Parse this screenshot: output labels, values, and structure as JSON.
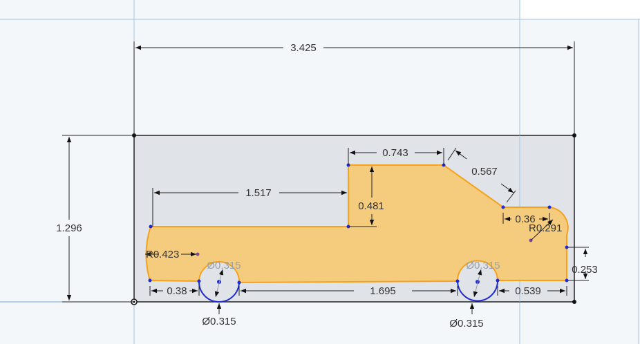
{
  "colors": {
    "body_fill": "#f5ca78",
    "body_stroke": "#f5a21c",
    "wheel_stroke": "#1f2ad6",
    "stock_fill": "#dcdfe4",
    "canvas": "#f4f7fa"
  },
  "dimensions": {
    "overall_width": "3.425",
    "overall_height": "1.296",
    "roof_length": "0.743",
    "windshield": "0.567",
    "bed_length": "1.517",
    "cab_step": "0.481",
    "hood_length": "0.36",
    "front_radius": "R0.291",
    "rear_radius": "R0.423",
    "front_lower": "0.253",
    "rear_overhang": "0.38",
    "wheelbase": "1.695",
    "front_overhang": "0.539",
    "rear_wheel_dia": "Ø0.315",
    "front_wheel_dia": "Ø0.315",
    "rear_wheel_dia_ghost": "Ø0.315",
    "front_wheel_dia_ghost": "Ø0.315"
  }
}
